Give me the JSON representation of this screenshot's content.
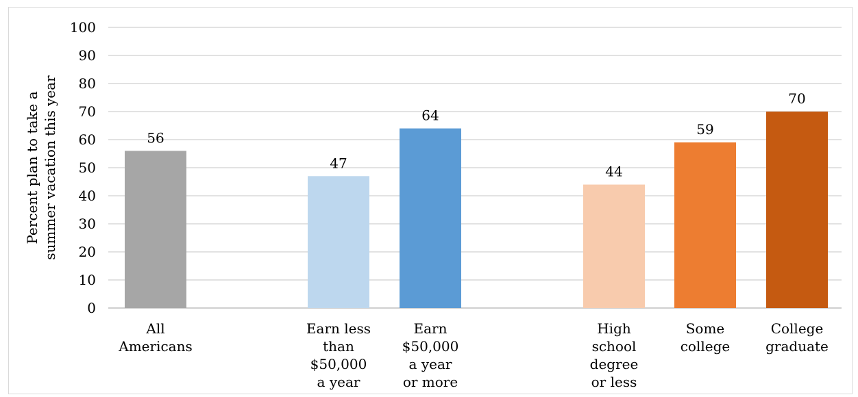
{
  "chart_data": {
    "type": "bar",
    "title": "",
    "ylabel": [
      "Percent plan to take a",
      "summer vacation this year"
    ],
    "xlabel": "",
    "ylim": [
      0,
      100
    ],
    "yticks": [
      "0",
      "10",
      "20",
      "30",
      "40",
      "50",
      "60",
      "70",
      "80",
      "90",
      "100"
    ],
    "grid": true,
    "categories": [
      [
        "All",
        "Americans"
      ],
      [
        "Earn less",
        "than",
        "$50,000",
        "a year"
      ],
      [
        "Earn",
        "$50,000",
        "a year",
        "or more"
      ],
      [
        "High",
        "school",
        "degree",
        "or less"
      ],
      [
        "Some",
        "college"
      ],
      [
        "College",
        "graduate"
      ]
    ],
    "values": [
      56,
      47,
      64,
      44,
      59,
      70
    ],
    "data_labels": [
      "56",
      "47",
      "64",
      "44",
      "59",
      "70"
    ],
    "colors": [
      "#a6a6a6",
      "#bdd7ee",
      "#5b9bd5",
      "#f8cbad",
      "#ed7d31",
      "#c55a11"
    ]
  }
}
